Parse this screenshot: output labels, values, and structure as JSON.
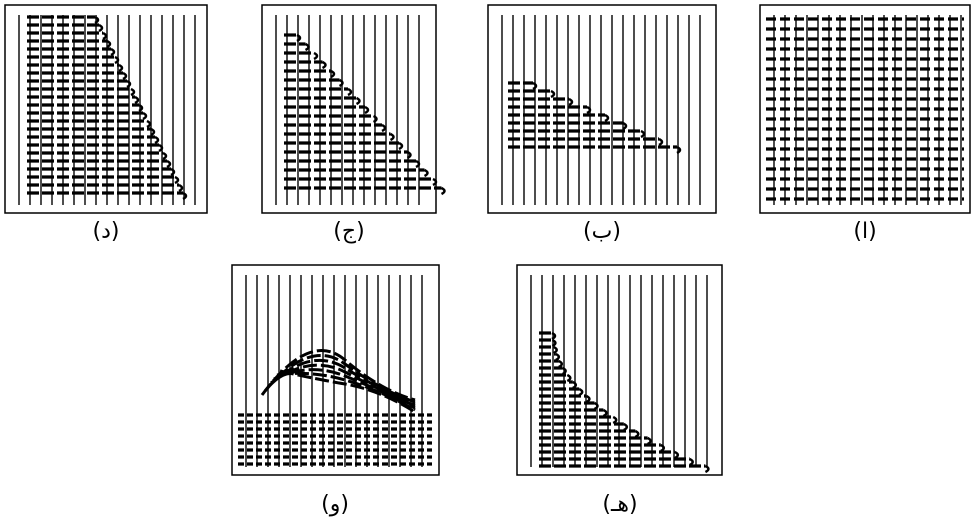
{
  "panels": [
    {
      "label": "(د)"
    },
    {
      "label": "(ج)"
    },
    {
      "label": "(ب)"
    },
    {
      "label": "(ا)"
    },
    {
      "label": "(و)"
    },
    {
      "label": "(هـ)"
    }
  ]
}
